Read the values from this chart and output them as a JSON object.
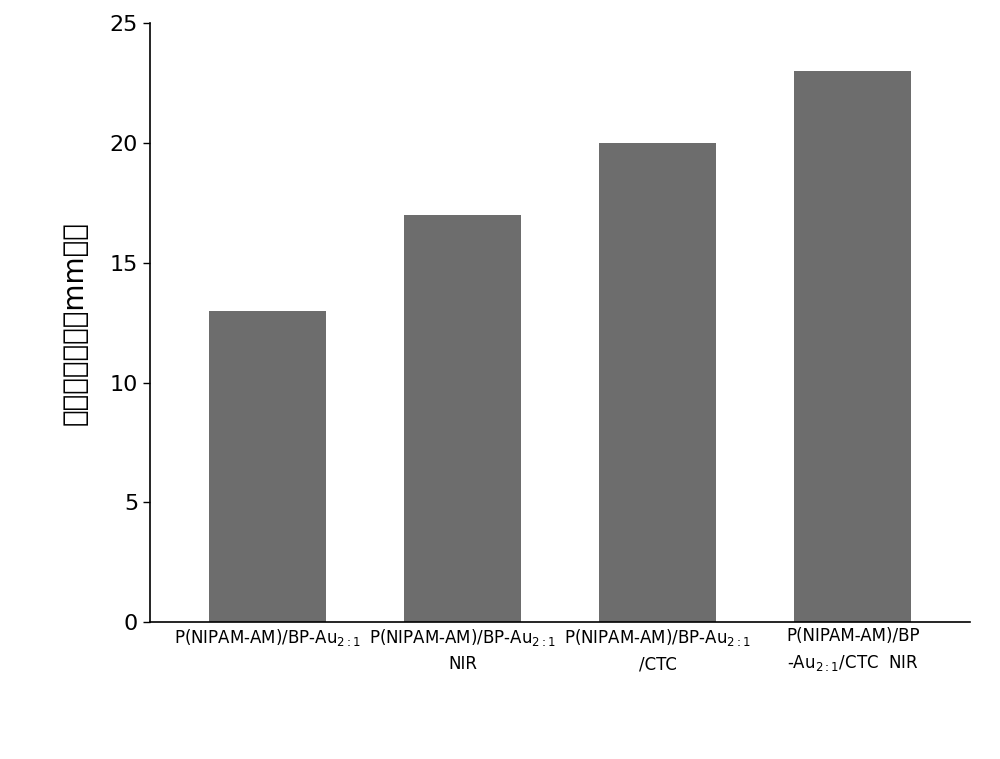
{
  "values": [
    13.0,
    17.0,
    20.0,
    23.0
  ],
  "bar_color": "#6d6d6d",
  "ylabel": "抑菌圈直径（　mm　）",
  "ylim": [
    0,
    25
  ],
  "yticks": [
    0,
    5,
    10,
    15,
    20,
    25
  ],
  "bar_width": 0.6,
  "figsize": [
    10.0,
    7.59
  ],
  "dpi": 100,
  "ylabel_fontsize": 20,
  "tick_fontsize": 16,
  "xtick_fontsize": 12,
  "background_color": "#ffffff",
  "x_positions": [
    0,
    1,
    2,
    3
  ]
}
